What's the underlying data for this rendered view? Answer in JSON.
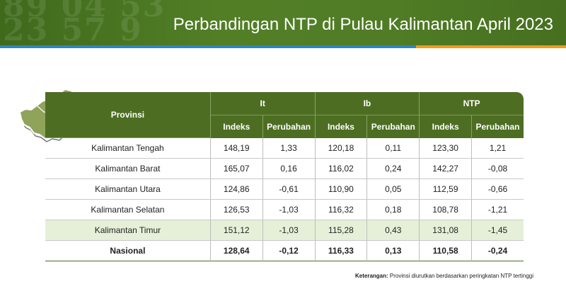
{
  "banner": {
    "title": "Perbandingan NTP di Pulau Kalimantan April 2023",
    "decor_digits": "89 04 53\n23 57 9"
  },
  "colors": {
    "banner_green": "#4f7c25",
    "header_green": "#4d6e22",
    "highlight_row": "#e6f0d8",
    "stripe_blue": "#2a86c7",
    "stripe_orange": "#f39a1b",
    "map_fill": "#8fa35a"
  },
  "map": {
    "icon": "kalimantan-map-icon"
  },
  "table": {
    "headers": {
      "provinsi": "Provinsi",
      "groups": [
        "It",
        "Ib",
        "NTP"
      ],
      "sub": [
        "Indeks",
        "Perubahan",
        "Indeks",
        "Perubahan",
        "Indeks",
        "Perubahan"
      ]
    },
    "rows": [
      {
        "name": "Kalimantan Tengah",
        "values": [
          "148,19",
          "1,33",
          "120,18",
          "0,11",
          "123,30",
          "1,21"
        ]
      },
      {
        "name": "Kalimantan Barat",
        "values": [
          "165,07",
          "0,16",
          "116,02",
          "0,24",
          "142,27",
          "-0,08"
        ]
      },
      {
        "name": "Kalimantan Utara",
        "values": [
          "124,86",
          "-0,61",
          "110,90",
          "0,05",
          "112,59",
          "-0,66"
        ]
      },
      {
        "name": "Kalimantan Selatan",
        "values": [
          "126,53",
          "-1,03",
          "116,32",
          "0,18",
          "108,78",
          "-1,21"
        ]
      },
      {
        "name": "Kalimantan Timur",
        "values": [
          "151,12",
          "-1,03",
          "115,28",
          "0,43",
          "131,08",
          "-1,45"
        ]
      },
      {
        "name": "Nasional",
        "values": [
          "128,64",
          "-0,12",
          "116,33",
          "0,13",
          "110,58",
          "-0,24"
        ]
      }
    ]
  },
  "note": {
    "label": "Keterangan:",
    "text": "Provinsi diurutkan berdasarkan peringkatan NTP tertinggi"
  }
}
